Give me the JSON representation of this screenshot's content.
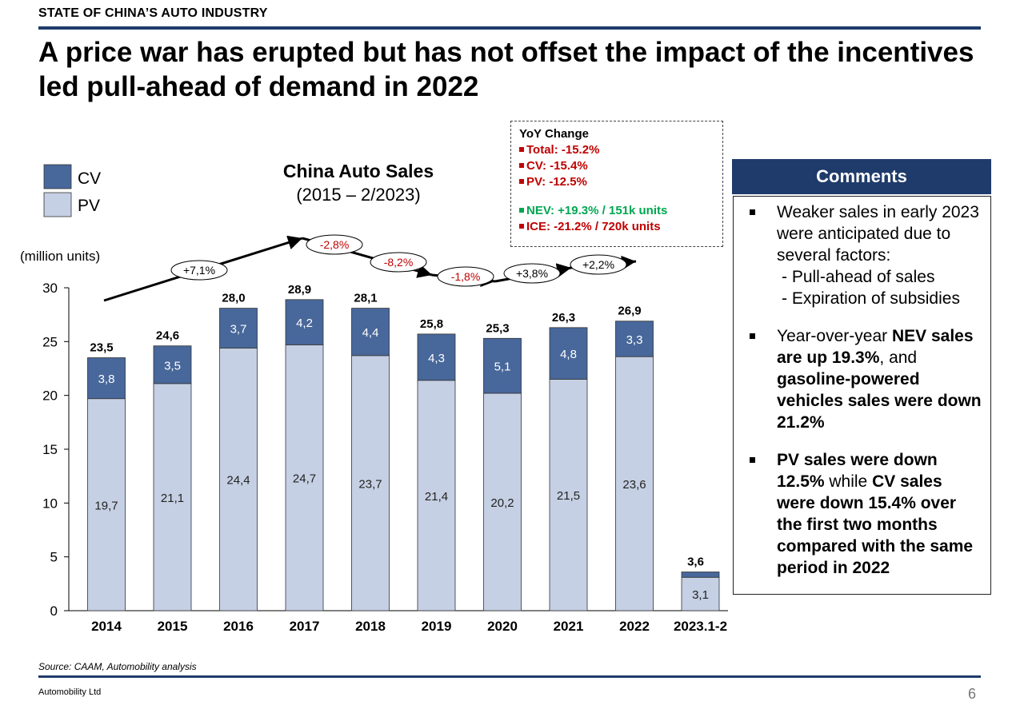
{
  "header": {
    "kicker": "STATE OF CHINA’S AUTO INDUSTRY",
    "headline": "A price war has erupted but has not offset the impact of the incentives led pull-ahead of demand in 2022"
  },
  "chart_data": {
    "type": "bar",
    "stacked": true,
    "title": "China Auto Sales",
    "subtitle": "(2015 – 2/2023)",
    "ylabel": "(million units)",
    "ylim": [
      0,
      30
    ],
    "yticks": [
      0,
      5,
      10,
      15,
      20,
      25,
      30
    ],
    "categories": [
      "2014",
      "2015",
      "2016",
      "2017",
      "2018",
      "2019",
      "2020",
      "2021",
      "2022",
      "2023.1-2"
    ],
    "series": [
      {
        "name": "PV",
        "color": "#c5d0e4",
        "values": [
          19.7,
          21.1,
          24.4,
          24.7,
          23.7,
          21.4,
          20.2,
          21.5,
          23.6,
          3.1
        ],
        "labels": [
          "19,7",
          "21,1",
          "24,4",
          "24,7",
          "23,7",
          "21,4",
          "20,2",
          "21,5",
          "23,6",
          "3,1"
        ]
      },
      {
        "name": "CV",
        "color": "#48679a",
        "values": [
          3.8,
          3.5,
          3.7,
          4.2,
          4.4,
          4.3,
          5.1,
          4.8,
          3.3,
          0.5
        ],
        "labels": [
          "3,8",
          "3,5",
          "3,7",
          "4,2",
          "4,4",
          "4,3",
          "5,1",
          "4,8",
          "3,3",
          ""
        ]
      }
    ],
    "totals": [
      23.5,
      24.6,
      28.0,
      28.9,
      28.1,
      25.8,
      25.3,
      26.3,
      26.9,
      3.6
    ],
    "total_labels": [
      "23,5",
      "24,6",
      "28,0",
      "28,9",
      "28,1",
      "25,8",
      "25,3",
      "26,3",
      "26,9",
      "3,6"
    ],
    "growth_labels": [
      "+7,1%",
      "-2,8%",
      "-8,2%",
      "-1,8%",
      "+3,8%",
      "+2,2%"
    ],
    "growth_colors": [
      "#000000",
      "#c00000",
      "#c00000",
      "#c00000",
      "#000000",
      "#000000"
    ],
    "legend": [
      "CV",
      "PV"
    ],
    "legend_position": "top-left"
  },
  "yoy_box": {
    "heading": "YoY Change",
    "lines_red": [
      "Total: -15.2%",
      "CV: -15.4%",
      "PV: -12.5%"
    ],
    "line_nev": "NEV: +19.3% / 151k units",
    "line_ice": "ICE: -21.2% / 720k units"
  },
  "comments": {
    "heading": "Comments",
    "b1_text": "Weaker sales in early 2023 were anticipated due to several factors:",
    "b1_sub1": "- Pull-ahead of sales",
    "b1_sub2": "- Expiration of subsidies",
    "b2_pre": "Year-over-year ",
    "b2_bold1": "NEV sales are up 19.3%",
    "b2_mid": ", and ",
    "b2_bold2": "gasoline-powered vehicles sales were down 21.2%",
    "b3_bold1": "PV sales were down 12.5%",
    "b3_mid": " while ",
    "b3_bold2": "CV sales were down 15.4% over the first two months compared with the same period in 2022"
  },
  "footer": {
    "source": "Source: CAAM, Automobility analysis",
    "company": "Automobility Ltd",
    "page": "6"
  },
  "colors": {
    "accent": "#1f3b6b",
    "pv": "#c5d0e4",
    "cv": "#48679a",
    "red": "#c00000",
    "green": "#00a651"
  }
}
